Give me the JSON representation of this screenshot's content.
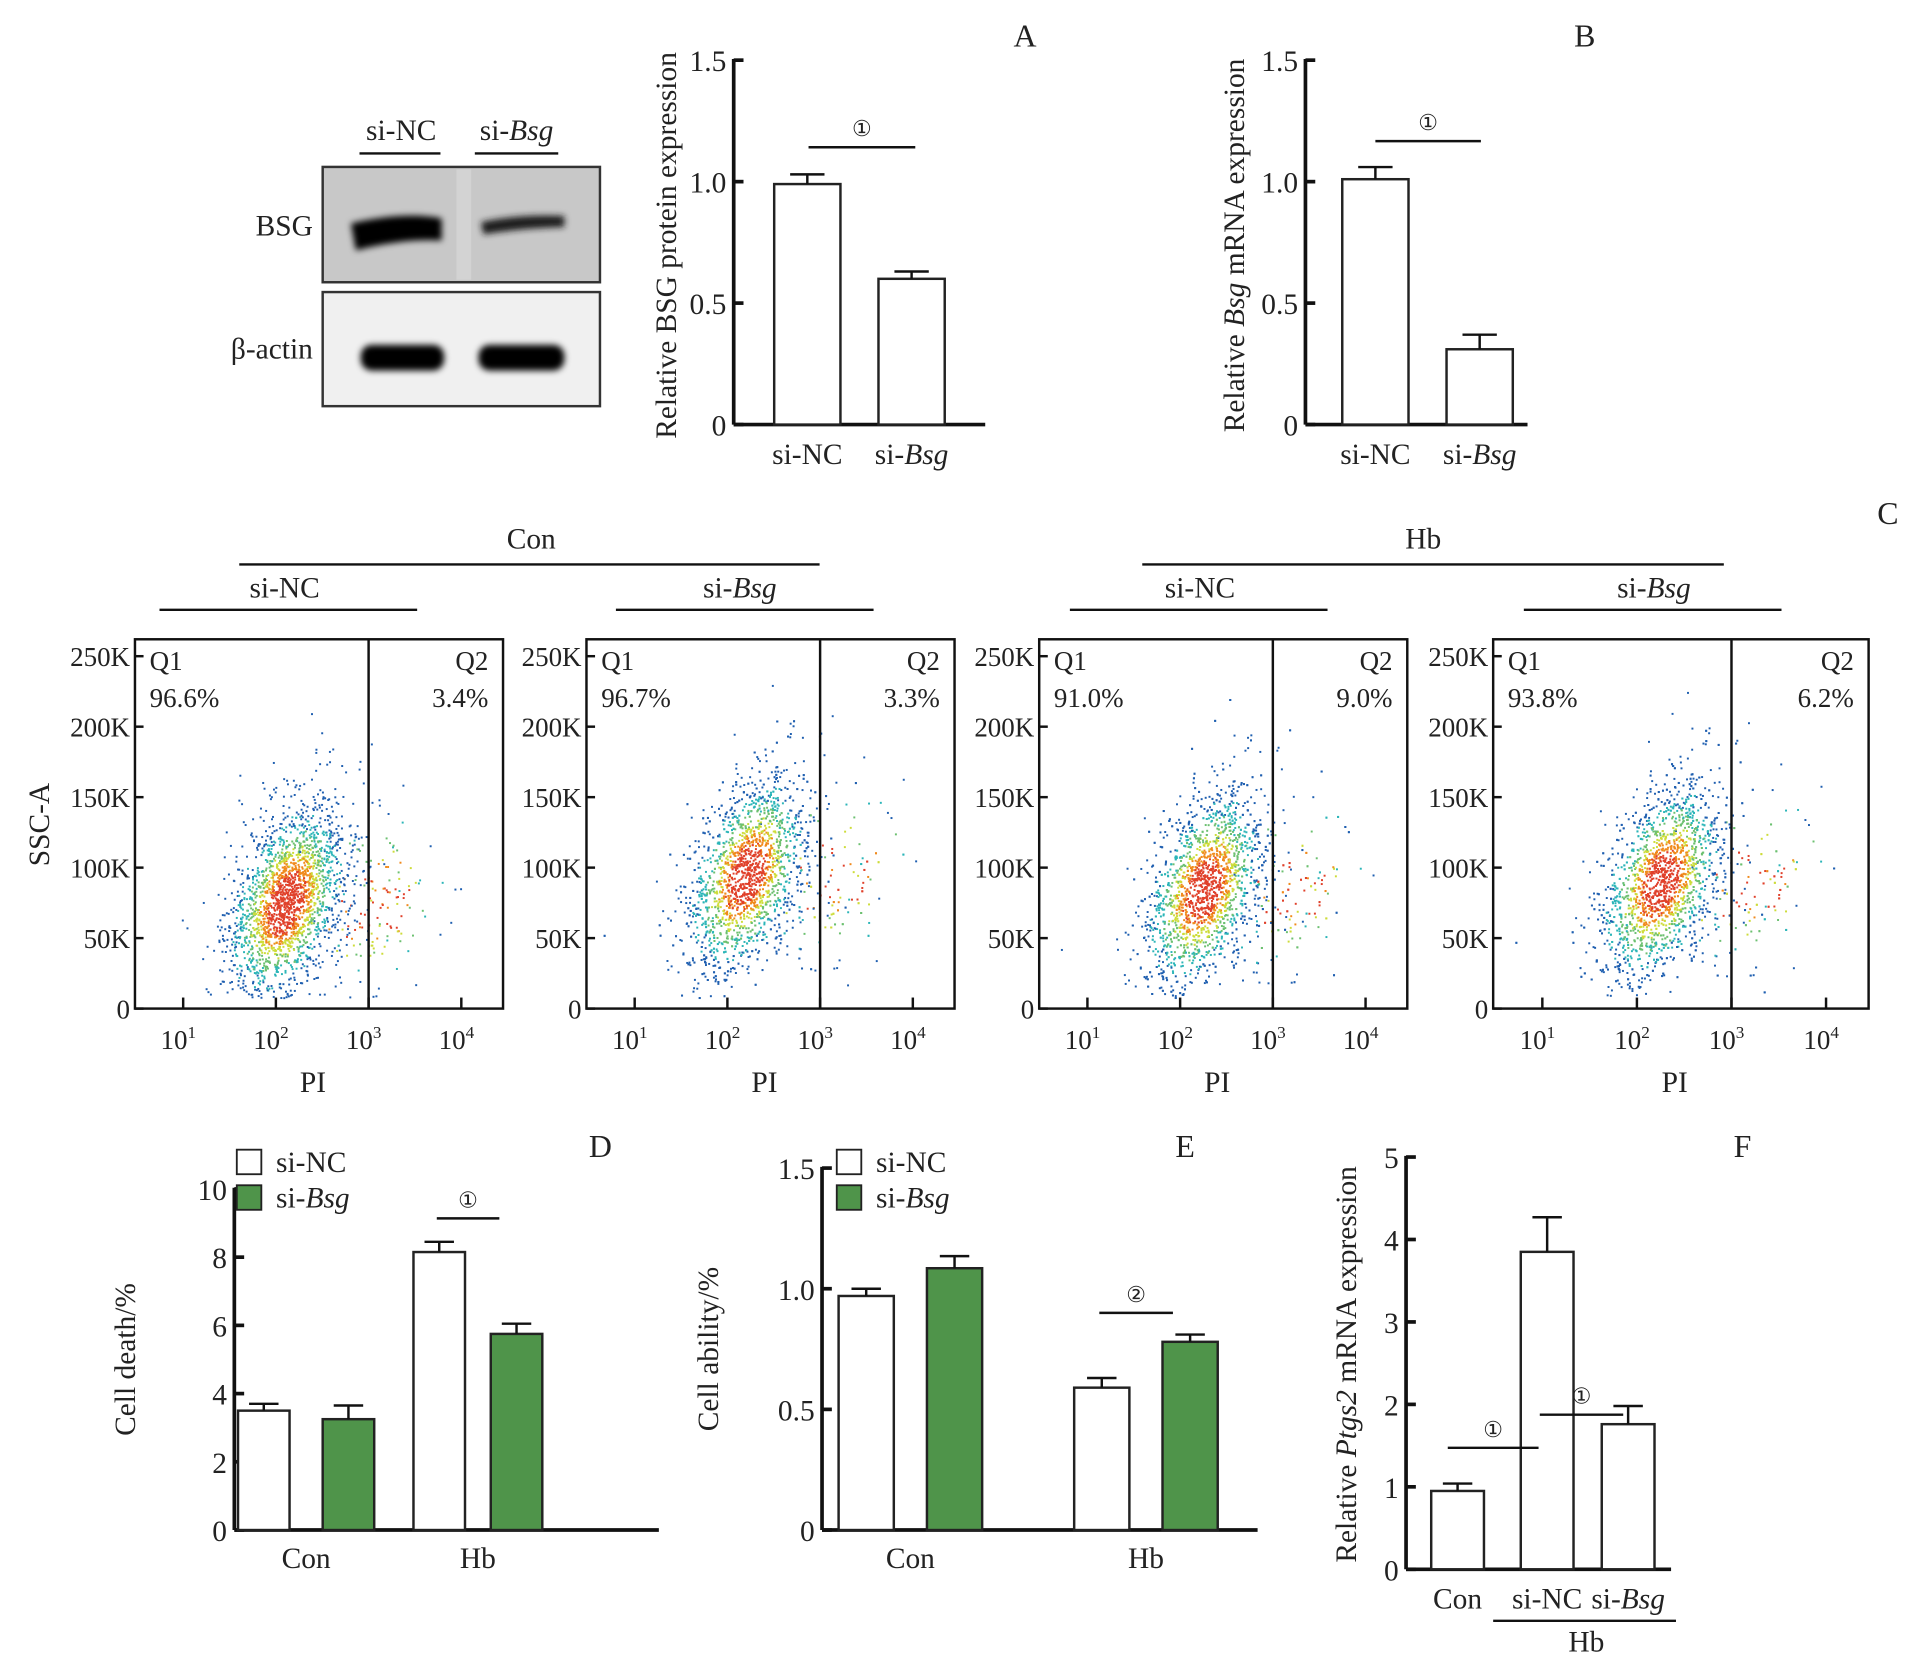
{
  "panel_labels": {
    "A": "A",
    "B": "B",
    "C": "C",
    "D": "D",
    "E": "E",
    "F": "F"
  },
  "western_blot": {
    "lanes": [
      {
        "label": "si-",
        "italic": "",
        "plain": "si-NC"
      },
      {
        "label": "si-",
        "italic": "Bsg",
        "plain": ""
      }
    ],
    "rows": [
      {
        "label": "BSG",
        "band_intensity": [
          1.0,
          0.55
        ]
      },
      {
        "label": "β-actin",
        "band_intensity": [
          1.0,
          1.0
        ]
      }
    ]
  },
  "significance_marks": {
    "p1": "①",
    "p2": "②"
  },
  "chart_data": [
    {
      "id": "A",
      "type": "bar",
      "title": "",
      "ylabel_parts": [
        "Relative BSG protein expression"
      ],
      "categories": [
        {
          "prefix": "si-NC",
          "italic": ""
        },
        {
          "prefix": "si-",
          "italic": "Bsg"
        }
      ],
      "values": [
        0.99,
        0.6
      ],
      "errors": [
        0.04,
        0.03
      ],
      "ylim": [
        0,
        1.5
      ],
      "yticks": [
        0,
        0.5,
        1.0,
        1.5
      ],
      "ytick_labels": [
        "0",
        "0.5",
        "1.0",
        "1.5"
      ],
      "significance": [
        {
          "from": 0,
          "to": 1,
          "mark": "①"
        }
      ],
      "fill": "#ffffff"
    },
    {
      "id": "B",
      "type": "bar",
      "title": "",
      "ylabel_parts": [
        "Relative ",
        "Bsg",
        " mRNA expression"
      ],
      "categories": [
        {
          "prefix": "si-NC",
          "italic": ""
        },
        {
          "prefix": "si-",
          "italic": "Bsg"
        }
      ],
      "values": [
        1.01,
        0.31
      ],
      "errors": [
        0.05,
        0.06
      ],
      "ylim": [
        0,
        1.5
      ],
      "yticks": [
        0,
        0.5,
        1.0,
        1.5
      ],
      "ytick_labels": [
        "0",
        "0.5",
        "1.0",
        "1.5"
      ],
      "significance": [
        {
          "from": 0,
          "to": 1,
          "mark": "①"
        }
      ],
      "fill": "#ffffff"
    },
    {
      "id": "C",
      "type": "scatter",
      "group_labels": [
        "Con",
        "Hb"
      ],
      "xlabel": "PI",
      "ylabel": "SSC-A",
      "xticks": [
        "10^1",
        "10^2",
        "10^3",
        "10^4"
      ],
      "xtick_base": "10",
      "xtick_exps": [
        "1",
        "2",
        "3",
        "4"
      ],
      "yticks": [
        0,
        50000,
        100000,
        150000,
        200000,
        250000
      ],
      "ytick_labels": [
        "0",
        "50K",
        "100K",
        "150K",
        "200K",
        "250K"
      ],
      "ylim": [
        0,
        262000
      ],
      "gate_x": "10^3",
      "plots": [
        {
          "group": "Con",
          "sub": {
            "prefix": "si-NC",
            "italic": ""
          },
          "q1_label": "Q1",
          "q1": "96.6%",
          "q2_label": "Q2",
          "q2": "3.4%",
          "center_log": 2.1,
          "center_y": 75000
        },
        {
          "group": "Con",
          "sub": {
            "prefix": "si-",
            "italic": "Bsg"
          },
          "q1_label": "Q1",
          "q1": "96.7%",
          "q2_label": "Q2",
          "q2": "3.3%",
          "center_log": 2.2,
          "center_y": 95000
        },
        {
          "group": "Hb",
          "sub": {
            "prefix": "si-NC",
            "italic": ""
          },
          "q1_label": "Q1",
          "q1": "91.0%",
          "q2_label": "Q2",
          "q2": "9.0%",
          "center_log": 2.25,
          "center_y": 85000
        },
        {
          "group": "Hb",
          "sub": {
            "prefix": "si-",
            "italic": "Bsg"
          },
          "q1_label": "Q1",
          "q1": "93.8%",
          "q2_label": "Q2",
          "q2": "6.2%",
          "center_log": 2.25,
          "center_y": 90000
        }
      ]
    },
    {
      "id": "D",
      "type": "bar",
      "ylabel": "Cell death/%",
      "categories": [
        "Con",
        "Hb"
      ],
      "legend": [
        {
          "prefix": "si-NC",
          "italic": "",
          "color": "#ffffff"
        },
        {
          "prefix": "si-",
          "italic": "Bsg",
          "color": "#4f944a"
        }
      ],
      "legend_position": "top-left",
      "series": [
        {
          "name": "si-NC",
          "values": [
            3.5,
            8.15
          ],
          "errors": [
            0.2,
            0.3
          ],
          "color": "#ffffff"
        },
        {
          "name": "si-Bsg",
          "values": [
            3.25,
            5.75
          ],
          "errors": [
            0.4,
            0.3
          ],
          "color": "#4f944a"
        }
      ],
      "ylim": [
        0,
        10
      ],
      "yticks": [
        0,
        2,
        4,
        6,
        8,
        10
      ],
      "ytick_labels": [
        "0",
        "2",
        "4",
        "6",
        "8",
        "10"
      ],
      "significance": [
        {
          "category": 1,
          "mark": "①"
        }
      ]
    },
    {
      "id": "E",
      "type": "bar",
      "ylabel": "Cell ability/%",
      "categories": [
        "Con",
        "Hb"
      ],
      "legend": [
        {
          "prefix": "si-NC",
          "italic": "",
          "color": "#ffffff"
        },
        {
          "prefix": "si-",
          "italic": "Bsg",
          "color": "#4f944a"
        }
      ],
      "legend_position": "top-left",
      "series": [
        {
          "name": "si-NC",
          "values": [
            0.97,
            0.59
          ],
          "errors": [
            0.03,
            0.04
          ],
          "color": "#ffffff"
        },
        {
          "name": "si-Bsg",
          "values": [
            1.085,
            0.78
          ],
          "errors": [
            0.05,
            0.03
          ],
          "color": "#4f944a"
        }
      ],
      "ylim": [
        0,
        1.5
      ],
      "yticks": [
        0,
        0.5,
        1.0,
        1.5
      ],
      "ytick_labels": [
        "0",
        "0.5",
        "1.0",
        "1.5"
      ],
      "significance": [
        {
          "category": 1,
          "mark": "②"
        }
      ]
    },
    {
      "id": "F",
      "type": "bar",
      "ylabel_parts": [
        "Relative ",
        "Ptgs2",
        " mRNA expression"
      ],
      "categories": [
        {
          "prefix": "Con",
          "italic": ""
        },
        {
          "prefix": "si-NC",
          "italic": ""
        },
        {
          "prefix": "si-",
          "italic": "Bsg"
        }
      ],
      "group_label": "Hb",
      "values": [
        0.95,
        3.85,
        1.76
      ],
      "errors": [
        0.09,
        0.42,
        0.22
      ],
      "ylim": [
        0,
        5
      ],
      "yticks": [
        0,
        1,
        2,
        3,
        4,
        5
      ],
      "ytick_labels": [
        "0",
        "1",
        "2",
        "3",
        "4",
        "5"
      ],
      "significance": [
        {
          "from": 0,
          "to": 1,
          "mark": "①"
        },
        {
          "from": 1,
          "to": 2,
          "mark": "①"
        }
      ],
      "fill": "#ffffff"
    }
  ]
}
